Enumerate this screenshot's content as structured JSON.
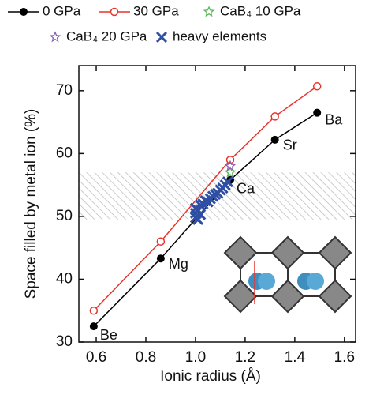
{
  "chart_data": {
    "type": "line",
    "x_label": "Ionic radius (Å)",
    "y_label": "Space filled by metal ion (%)",
    "xlim": [
      0.53,
      1.645
    ],
    "ylim": [
      30,
      74
    ],
    "xticks": [
      0.6,
      0.8,
      {
        "value": 1,
        "label": "1.0"
      },
      1.2,
      1.4,
      1.6
    ],
    "yticks": [
      30,
      40,
      50,
      60,
      70
    ],
    "shaded_band": [
      49.5,
      57
    ],
    "series": [
      {
        "name": "0 GPa",
        "color": "#000000",
        "marker": "filled-circle",
        "line": true,
        "x": [
          0.59,
          0.86,
          1.14,
          1.32,
          1.49
        ],
        "values": [
          32.5,
          43.3,
          55.8,
          62.2,
          66.5
        ],
        "point_labels": [
          "Be",
          "Mg",
          "Ca",
          "Sr",
          "Ba"
        ]
      },
      {
        "name": "30 GPa",
        "color": "#e8332a",
        "marker": "open-circle",
        "line": true,
        "x": [
          0.59,
          0.86,
          1.14,
          1.32,
          1.49
        ],
        "values": [
          35,
          46,
          59,
          65.9,
          70.7
        ]
      },
      {
        "name": "CaB₄ 10 GPa",
        "color": "#5cb85c",
        "marker": "star",
        "line": false,
        "x": [
          1.14
        ],
        "values": [
          57
        ]
      },
      {
        "name": "CaB₄ 20 GPa",
        "color": "#8a5fb0",
        "marker": "star",
        "line": false,
        "x": [
          1.14
        ],
        "values": [
          58
        ]
      },
      {
        "name": "heavy elements",
        "color": "#2e4fa3",
        "marker": "x",
        "line": false,
        "x": [
          1.0,
          1.0,
          1.01,
          1.0,
          1.02,
          1.02,
          1.03,
          1.04,
          1.05,
          1.06,
          1.07,
          1.08,
          1.09,
          1.1,
          1.11,
          1.12,
          1.13,
          1.01
        ],
        "values": [
          49.8,
          50.5,
          51,
          51.3,
          50.3,
          51.8,
          52,
          52.5,
          52.3,
          52.8,
          53.2,
          53.5,
          53.7,
          54.2,
          54.5,
          55,
          55.5,
          49.5
        ]
      }
    ]
  }
}
